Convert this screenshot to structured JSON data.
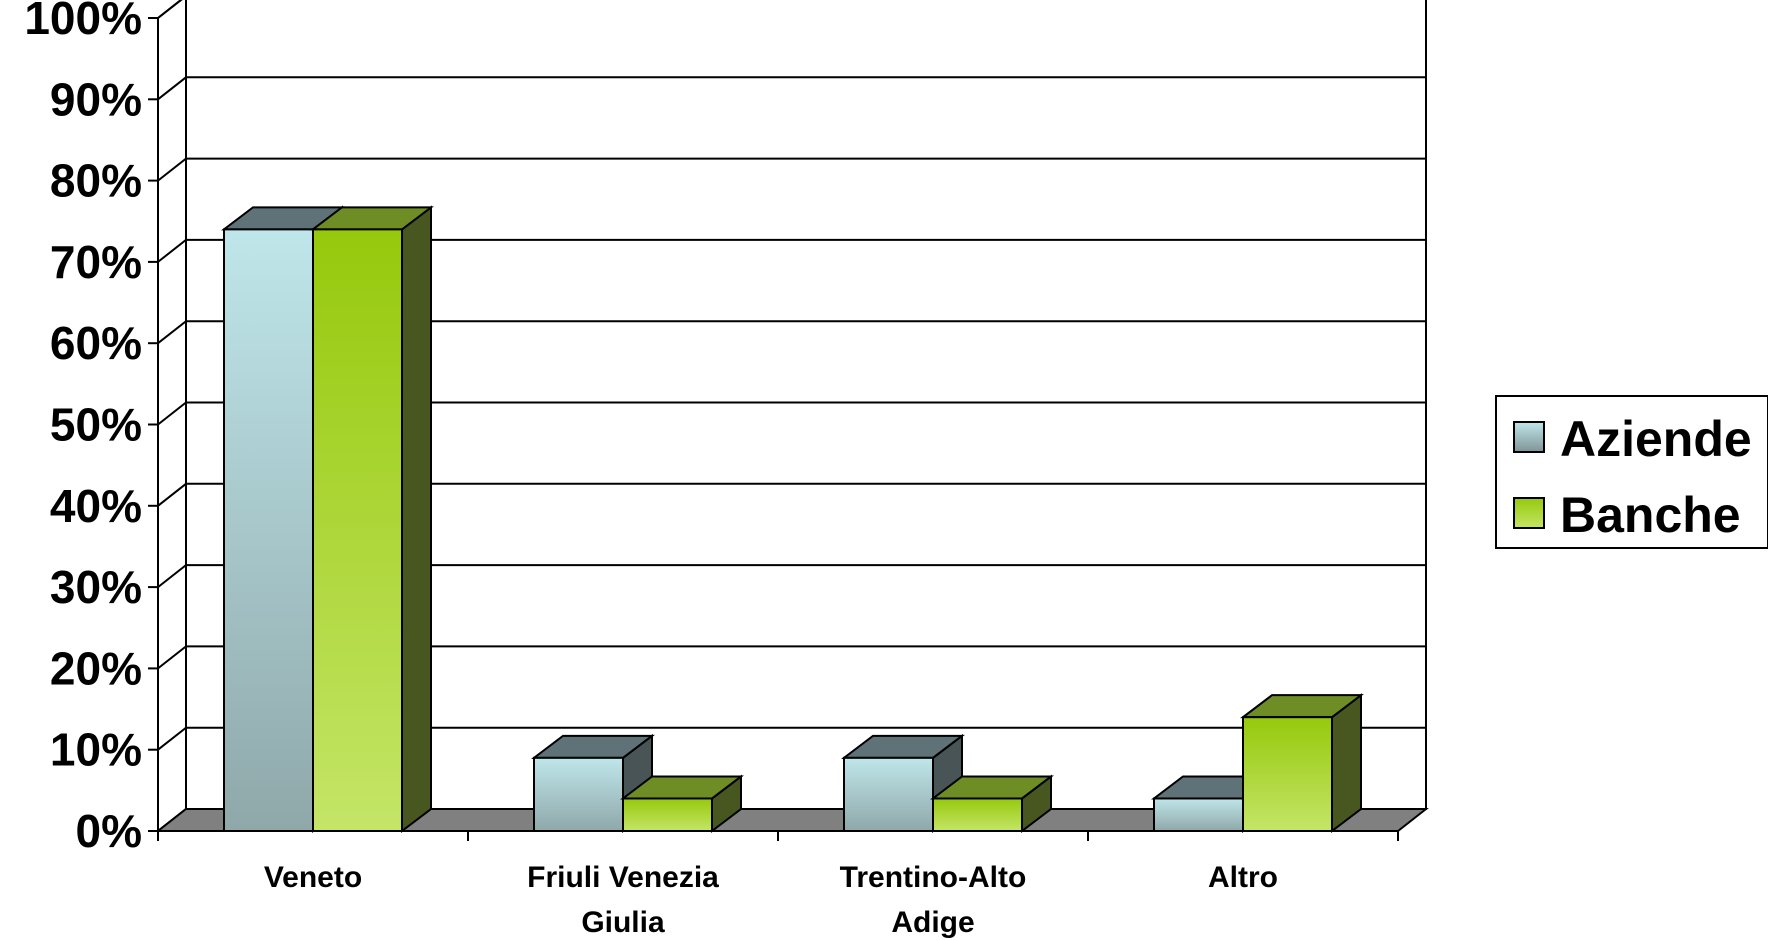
{
  "chart_data": {
    "type": "bar",
    "style": "3d-clustered-column",
    "title": "",
    "xlabel": "",
    "ylabel": "",
    "categories": [
      [
        "Veneto"
      ],
      [
        "Friuli Venezia",
        "Giulia"
      ],
      [
        "Trentino-Alto",
        "Adige"
      ],
      [
        "Altro"
      ]
    ],
    "series": [
      {
        "name": "Aziende",
        "values": [
          74,
          9,
          9,
          4
        ],
        "color": "#b8dfe3"
      },
      {
        "name": "Banche",
        "values": [
          74,
          4,
          4,
          14
        ],
        "color": "#9acd0f"
      }
    ],
    "ylim": [
      0,
      100
    ],
    "yticks": [
      "0%",
      "10%",
      "20%",
      "30%",
      "40%",
      "50%",
      "60%",
      "70%",
      "80%",
      "90%",
      "100%"
    ],
    "grid": true,
    "legend": "right"
  }
}
